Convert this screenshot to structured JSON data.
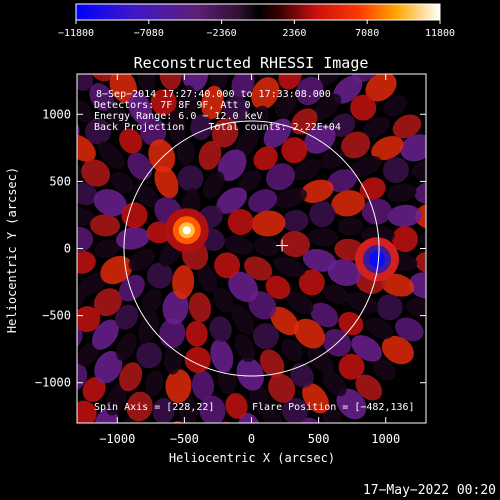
{
  "chart_data": {
    "type": "heatmap",
    "title": "Reconstructed RHESSI Image",
    "xlabel": "Heliocentric X (arcsec)",
    "ylabel": "Heliocentric Y (arcsec)",
    "xlim": [
      -1300,
      1300
    ],
    "ylim": [
      -1300,
      1300
    ],
    "x_ticks": [
      -1000,
      -500,
      0,
      500,
      1000
    ],
    "y_ticks": [
      -1000,
      -500,
      0,
      500,
      1000
    ],
    "x_tick_labels": [
      "−1000",
      "−500",
      "0",
      "500",
      "1000"
    ],
    "y_tick_labels": [
      "−1000",
      "−500",
      "0",
      "500",
      "1000"
    ],
    "colorbar": {
      "min": -11800,
      "max": 11800,
      "ticks": [
        -11800,
        -7080,
        -2360,
        2360,
        7080,
        11800
      ],
      "tick_labels": [
        "−11800",
        "−7080",
        "−2360",
        "2360",
        "7080",
        "11800"
      ]
    },
    "annotations": [
      "8−Sep−2014 17:27:40.000 to 17:33:08.000",
      "Detectors: 7F 8F 9F, Att 0",
      "Energy Range: 6.0 − 12.0 keV",
      "Back Projection    Total counts: 2.22E+04"
    ],
    "spin_axis_label": "Spin Axis = [228,22]",
    "flare_position_label": "Flare Position = [−482,136]",
    "solar_disk_radius": 950,
    "spin_axis": [
      228,
      22
    ],
    "flare_position": [
      -482,
      136
    ],
    "sources": [
      {
        "x": -482,
        "y": 136,
        "value": 11800
      },
      {
        "x": 935,
        "y": -80,
        "value": -11800
      }
    ],
    "grid": false
  },
  "footer": {
    "timestamp": "17−May−2022 00:20"
  }
}
